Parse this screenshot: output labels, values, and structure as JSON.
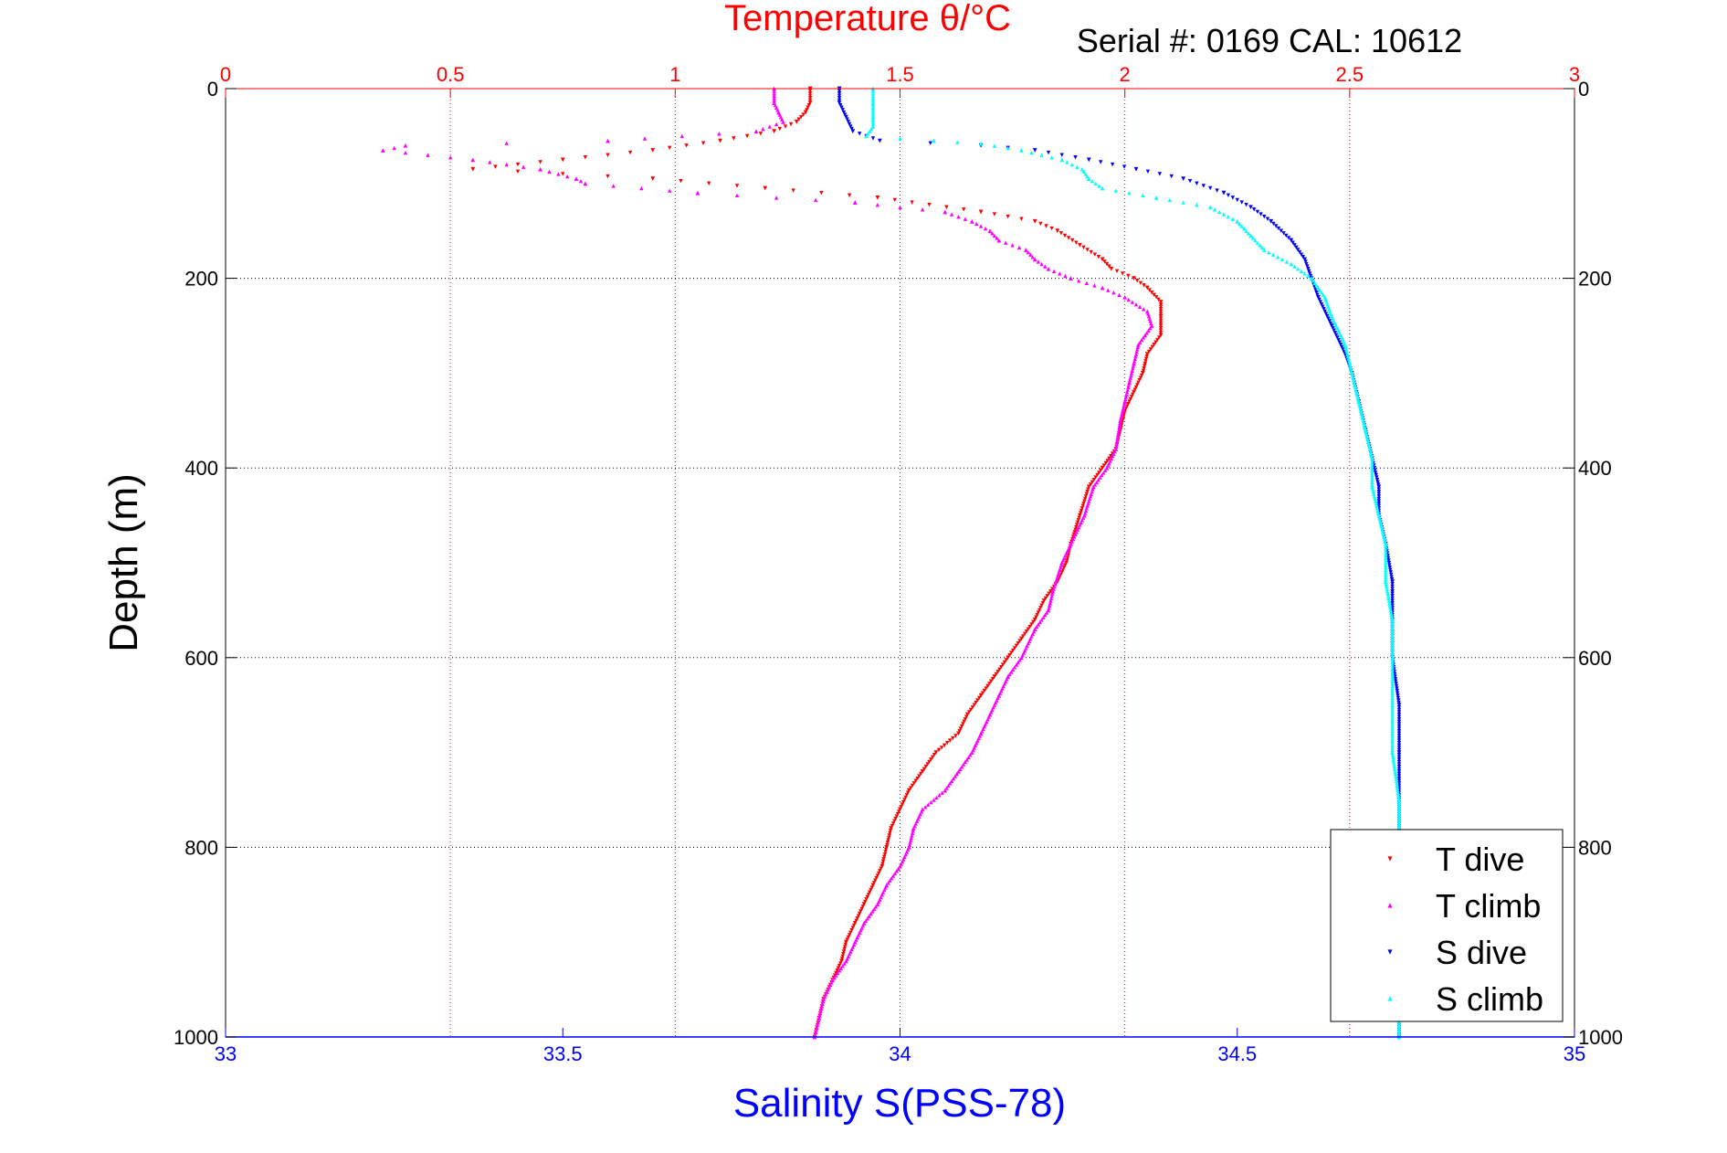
{
  "chart_data": {
    "type": "scatter",
    "title": "Temperature θ/°C",
    "subtitle": "Serial #: 0169 CAL: 10612",
    "xlabel_top": "Temperature θ/°C",
    "xlabel_bottom": "Salinity S(PSS-78)",
    "ylabel": "Depth (m)",
    "ylim": [
      0,
      1000
    ],
    "y_reversed": true,
    "xlim_top": [
      0,
      3
    ],
    "xlim_bottom": [
      33,
      35
    ],
    "y_ticks": [
      "0",
      "200",
      "400",
      "600",
      "800",
      "1000"
    ],
    "top_ticks": [
      "0",
      "0.5",
      "1",
      "1.5",
      "2",
      "2.5",
      "3"
    ],
    "bottom_ticks": [
      "33",
      "33.5",
      "34",
      "34.5",
      "35"
    ],
    "grid": true,
    "legend_position": "bottom-right",
    "colors": {
      "temperature_axis": "#ff0000",
      "salinity_axis": "#0000ff"
    },
    "series": [
      {
        "name": "T dive",
        "axis": "top",
        "color": "#ff0000",
        "marker": "triangle-down",
        "points": [
          [
            1.3,
            0
          ],
          [
            1.3,
            15
          ],
          [
            1.29,
            25
          ],
          [
            1.27,
            35
          ],
          [
            1.22,
            45
          ],
          [
            1.1,
            55
          ],
          [
            0.95,
            65
          ],
          [
            0.75,
            75
          ],
          [
            0.55,
            85
          ],
          [
            0.95,
            95
          ],
          [
            1.2,
            105
          ],
          [
            1.45,
            115
          ],
          [
            1.68,
            130
          ],
          [
            1.8,
            140
          ],
          [
            1.85,
            150
          ],
          [
            1.9,
            165
          ],
          [
            1.95,
            180
          ],
          [
            1.97,
            190
          ],
          [
            2.02,
            200
          ],
          [
            2.05,
            210
          ],
          [
            2.08,
            225
          ],
          [
            2.08,
            240
          ],
          [
            2.08,
            260
          ],
          [
            2.05,
            280
          ],
          [
            2.04,
            300
          ],
          [
            2.02,
            320
          ],
          [
            2.0,
            340
          ],
          [
            1.99,
            360
          ],
          [
            1.98,
            380
          ],
          [
            1.95,
            400
          ],
          [
            1.92,
            420
          ],
          [
            1.9,
            450
          ],
          [
            1.88,
            480
          ],
          [
            1.87,
            500
          ],
          [
            1.85,
            520
          ],
          [
            1.82,
            540
          ],
          [
            1.8,
            560
          ],
          [
            1.77,
            580
          ],
          [
            1.74,
            600
          ],
          [
            1.71,
            620
          ],
          [
            1.68,
            640
          ],
          [
            1.65,
            660
          ],
          [
            1.63,
            680
          ],
          [
            1.58,
            700
          ],
          [
            1.55,
            720
          ],
          [
            1.52,
            740
          ],
          [
            1.5,
            760
          ],
          [
            1.48,
            780
          ],
          [
            1.47,
            800
          ],
          [
            1.46,
            820
          ],
          [
            1.44,
            840
          ],
          [
            1.42,
            860
          ],
          [
            1.4,
            880
          ],
          [
            1.38,
            900
          ],
          [
            1.37,
            920
          ],
          [
            1.35,
            940
          ],
          [
            1.33,
            960
          ],
          [
            1.32,
            980
          ],
          [
            1.31,
            1000
          ]
        ]
      },
      {
        "name": "T climb",
        "axis": "top",
        "color": "#ff00ff",
        "marker": "triangle-up",
        "points": [
          [
            1.22,
            0
          ],
          [
            1.22,
            15
          ],
          [
            1.23,
            25
          ],
          [
            1.24,
            35
          ],
          [
            1.18,
            45
          ],
          [
            0.85,
            55
          ],
          [
            0.4,
            60
          ],
          [
            0.35,
            65
          ],
          [
            0.55,
            75
          ],
          [
            0.7,
            85
          ],
          [
            0.78,
            95
          ],
          [
            0.8,
            100
          ],
          [
            1.05,
            110
          ],
          [
            1.4,
            120
          ],
          [
            1.6,
            130
          ],
          [
            1.66,
            140
          ],
          [
            1.7,
            150
          ],
          [
            1.72,
            160
          ],
          [
            1.78,
            170
          ],
          [
            1.8,
            180
          ],
          [
            1.83,
            190
          ],
          [
            1.88,
            200
          ],
          [
            1.95,
            210
          ],
          [
            2.0,
            220
          ],
          [
            2.05,
            235
          ],
          [
            2.06,
            250
          ],
          [
            2.03,
            270
          ],
          [
            2.02,
            290
          ],
          [
            2.01,
            310
          ],
          [
            2.0,
            330
          ],
          [
            1.99,
            350
          ],
          [
            1.98,
            380
          ],
          [
            1.96,
            400
          ],
          [
            1.93,
            420
          ],
          [
            1.91,
            450
          ],
          [
            1.88,
            480
          ],
          [
            1.86,
            500
          ],
          [
            1.84,
            530
          ],
          [
            1.83,
            550
          ],
          [
            1.8,
            570
          ],
          [
            1.77,
            600
          ],
          [
            1.74,
            620
          ],
          [
            1.72,
            640
          ],
          [
            1.7,
            660
          ],
          [
            1.68,
            680
          ],
          [
            1.66,
            700
          ],
          [
            1.63,
            720
          ],
          [
            1.6,
            740
          ],
          [
            1.55,
            760
          ],
          [
            1.53,
            780
          ],
          [
            1.52,
            800
          ],
          [
            1.5,
            820
          ],
          [
            1.47,
            840
          ],
          [
            1.45,
            860
          ],
          [
            1.42,
            880
          ],
          [
            1.4,
            900
          ],
          [
            1.38,
            920
          ],
          [
            1.35,
            940
          ],
          [
            1.33,
            960
          ],
          [
            1.32,
            980
          ],
          [
            1.31,
            1000
          ]
        ]
      },
      {
        "name": "S dive",
        "axis": "bottom",
        "color": "#0000ff",
        "marker": "triangle-down",
        "points": [
          [
            33.91,
            0
          ],
          [
            33.91,
            15
          ],
          [
            33.92,
            30
          ],
          [
            33.93,
            45
          ],
          [
            33.97,
            55
          ],
          [
            34.12,
            60
          ],
          [
            34.2,
            65
          ],
          [
            34.28,
            75
          ],
          [
            34.35,
            85
          ],
          [
            34.42,
            95
          ],
          [
            34.48,
            110
          ],
          [
            34.52,
            125
          ],
          [
            34.55,
            140
          ],
          [
            34.58,
            160
          ],
          [
            34.6,
            180
          ],
          [
            34.61,
            200
          ],
          [
            34.62,
            220
          ],
          [
            34.64,
            250
          ],
          [
            34.66,
            280
          ],
          [
            34.67,
            300
          ],
          [
            34.68,
            330
          ],
          [
            34.69,
            360
          ],
          [
            34.7,
            390
          ],
          [
            34.71,
            420
          ],
          [
            34.71,
            450
          ],
          [
            34.72,
            480
          ],
          [
            34.73,
            520
          ],
          [
            34.73,
            560
          ],
          [
            34.73,
            600
          ],
          [
            34.74,
            650
          ],
          [
            34.74,
            700
          ],
          [
            34.74,
            750
          ],
          [
            34.74,
            800
          ],
          [
            34.74,
            850
          ],
          [
            34.74,
            900
          ],
          [
            34.74,
            950
          ],
          [
            34.74,
            1000
          ]
        ]
      },
      {
        "name": "S climb",
        "axis": "bottom",
        "color": "#00ffff",
        "marker": "triangle-up",
        "points": [
          [
            33.96,
            0
          ],
          [
            33.96,
            15
          ],
          [
            33.96,
            30
          ],
          [
            33.96,
            40
          ],
          [
            33.95,
            50
          ],
          [
            34.05,
            55
          ],
          [
            34.12,
            58
          ],
          [
            34.18,
            65
          ],
          [
            34.24,
            75
          ],
          [
            34.27,
            85
          ],
          [
            34.28,
            95
          ],
          [
            34.3,
            105
          ],
          [
            34.38,
            115
          ],
          [
            34.46,
            125
          ],
          [
            34.5,
            140
          ],
          [
            34.52,
            155
          ],
          [
            34.54,
            170
          ],
          [
            34.58,
            185
          ],
          [
            34.61,
            200
          ],
          [
            34.63,
            220
          ],
          [
            34.64,
            240
          ],
          [
            34.66,
            270
          ],
          [
            34.67,
            300
          ],
          [
            34.68,
            330
          ],
          [
            34.69,
            360
          ],
          [
            34.7,
            390
          ],
          [
            34.7,
            420
          ],
          [
            34.71,
            450
          ],
          [
            34.72,
            480
          ],
          [
            34.72,
            520
          ],
          [
            34.73,
            560
          ],
          [
            34.73,
            600
          ],
          [
            34.73,
            650
          ],
          [
            34.73,
            700
          ],
          [
            34.74,
            750
          ],
          [
            34.74,
            800
          ],
          [
            34.74,
            850
          ],
          [
            34.74,
            900
          ],
          [
            34.74,
            950
          ],
          [
            34.74,
            1000
          ]
        ]
      }
    ]
  }
}
